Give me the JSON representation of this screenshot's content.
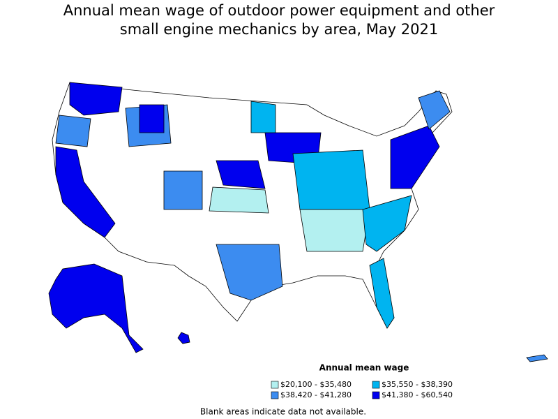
{
  "title": "Annual mean wage of outdoor power equipment and other small engine mechanics by area, May 2021",
  "legend": {
    "title": "Annual mean wage",
    "items": [
      {
        "label": "$20,100 - $35,480",
        "color": "#b3f0f0"
      },
      {
        "label": "$35,550 - $38,390",
        "color": "#00b4f0"
      },
      {
        "label": "$38,420 - $41,280",
        "color": "#3c8cf0"
      },
      {
        "label": "$41,380 - $60,540",
        "color": "#0000ee"
      }
    ]
  },
  "note": "Blank areas indicate data not available."
}
